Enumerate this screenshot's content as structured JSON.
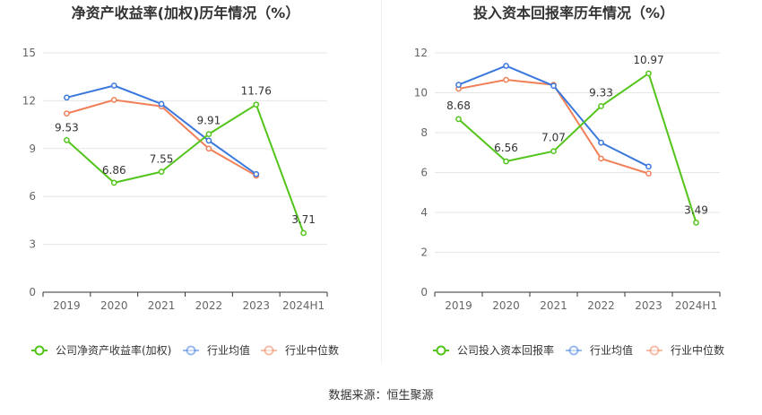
{
  "source_label": "数据来源：恒生聚源",
  "chart_data": [
    {
      "type": "line",
      "title": "净资产收益率(加权)历年情况（%）",
      "categories": [
        "2019",
        "2020",
        "2021",
        "2022",
        "2023",
        "2024H1"
      ],
      "ylim": [
        0,
        15
      ],
      "yticks": [
        0,
        3,
        6,
        9,
        12,
        15
      ],
      "grid": true,
      "legend_position": "bottom",
      "series": [
        {
          "name": "公司净资产收益率(加权)",
          "color": "#52c41a",
          "values": [
            9.53,
            6.86,
            7.55,
            9.91,
            11.76,
            3.71
          ],
          "labels": [
            "9.53",
            "6.86",
            "7.55",
            "9.91",
            "11.76",
            "3.71"
          ]
        },
        {
          "name": "行业均值",
          "color": "#3a78de",
          "values": [
            12.2,
            12.95,
            11.8,
            9.5,
            7.4,
            null
          ]
        },
        {
          "name": "行业中位数",
          "color": "#f08058",
          "values": [
            11.2,
            12.05,
            11.65,
            9.0,
            7.3,
            null
          ]
        }
      ]
    },
    {
      "type": "line",
      "title": "投入资本回报率历年情况（%）",
      "categories": [
        "2019",
        "2020",
        "2021",
        "2022",
        "2023",
        "2024H1"
      ],
      "ylim": [
        0,
        12
      ],
      "yticks": [
        0,
        2,
        4,
        6,
        8,
        10,
        12
      ],
      "grid": true,
      "legend_position": "bottom",
      "series": [
        {
          "name": "公司投入资本回报率",
          "color": "#52c41a",
          "values": [
            8.68,
            6.56,
            7.07,
            9.33,
            10.97,
            3.49
          ],
          "labels": [
            "8.68",
            "6.56",
            "7.07",
            "9.33",
            "10.97",
            "3.49"
          ]
        },
        {
          "name": "行业均值",
          "color": "#3a78de",
          "values": [
            10.4,
            11.35,
            10.35,
            7.5,
            6.3,
            null
          ]
        },
        {
          "name": "行业中位数",
          "color": "#f08058",
          "values": [
            10.2,
            10.65,
            10.4,
            6.7,
            5.95,
            null
          ]
        }
      ]
    }
  ]
}
